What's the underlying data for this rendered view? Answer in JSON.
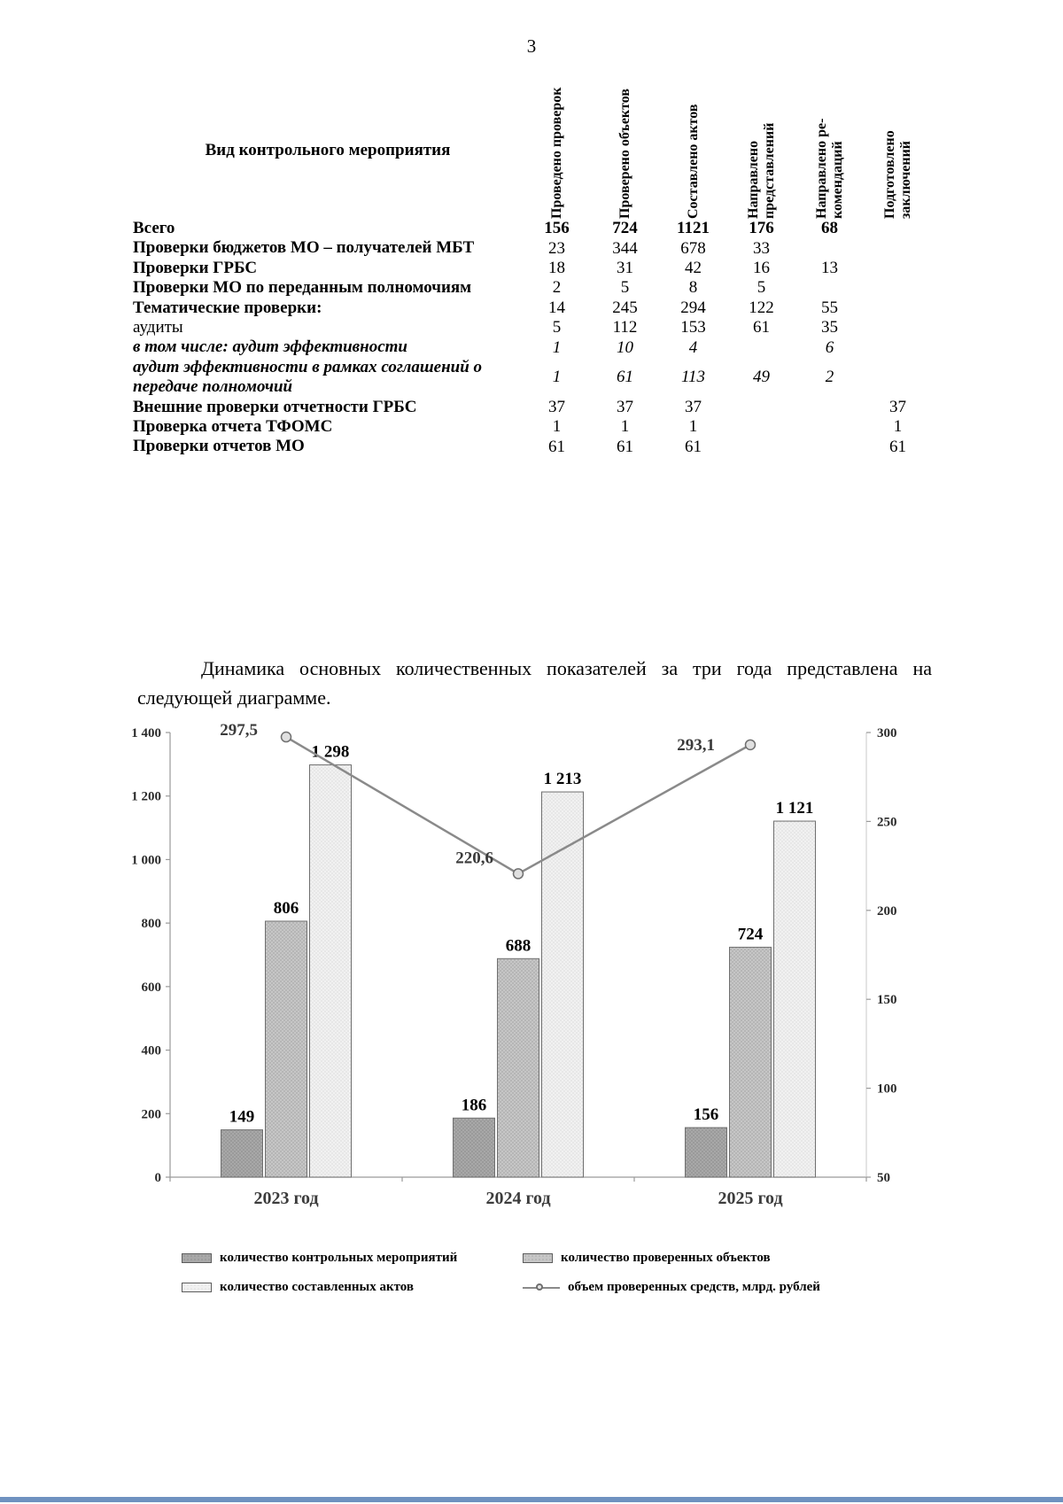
{
  "page_number": "3",
  "table": {
    "label_header": "Вид контрольного мероприятия",
    "col_headers": [
      "Проведено проверок",
      "Проверено объектов",
      "Составлено актов",
      "Направлено представлений",
      "Направлено ре-комендаций",
      "Подготовлено заключений"
    ],
    "rows": [
      {
        "label": "Всего",
        "label_style": "bold",
        "value_style": "bold",
        "values": [
          "156",
          "724",
          "1121",
          "176",
          "68",
          ""
        ]
      },
      {
        "label": "Проверки бюджетов МО – получателей МБТ",
        "label_style": "bold",
        "value_style": "regular",
        "values": [
          "23",
          "344",
          "678",
          "33",
          "",
          ""
        ]
      },
      {
        "label": "Проверки ГРБС",
        "label_style": "bold",
        "value_style": "regular",
        "values": [
          "18",
          "31",
          "42",
          "16",
          "13",
          ""
        ]
      },
      {
        "label": "Проверки МО по переданным полномочиям",
        "label_style": "bold",
        "value_style": "regular",
        "values": [
          "2",
          "5",
          "8",
          "5",
          "",
          ""
        ]
      },
      {
        "label": "Тематические проверки:",
        "label_style": "bold",
        "value_style": "regular",
        "values": [
          "14",
          "245",
          "294",
          "122",
          "55",
          ""
        ]
      },
      {
        "label": "аудиты",
        "label_style": "regular",
        "value_style": "regular",
        "values": [
          "5",
          "112",
          "153",
          "61",
          "35",
          ""
        ]
      },
      {
        "label": "в том числе: аудит эффективности",
        "label_style": "bold-italic",
        "value_style": "italic",
        "values": [
          "1",
          "10",
          "4",
          "",
          "6",
          ""
        ]
      },
      {
        "label": "аудит эффективности в рамках соглашений о передаче полномочий",
        "label_style": "bold-italic",
        "value_style": "italic",
        "values": [
          "1",
          "61",
          "113",
          "49",
          "2",
          ""
        ]
      },
      {
        "label": "Внешние проверки отчетности ГРБС",
        "label_style": "bold",
        "value_style": "regular",
        "values": [
          "37",
          "37",
          "37",
          "",
          "",
          "37"
        ]
      },
      {
        "label": "Проверка отчета ТФОМС",
        "label_style": "bold",
        "value_style": "regular",
        "values": [
          "1",
          "1",
          "1",
          "",
          "",
          "1"
        ]
      },
      {
        "label": "Проверки отчетов МО",
        "label_style": "bold",
        "value_style": "regular",
        "values": [
          "61",
          "61",
          "61",
          "",
          "",
          "61"
        ]
      }
    ]
  },
  "paragraph": "Динамика основных количественных показателей за три года представлена на следующей диаграмме.",
  "chart_data": {
    "type": "bar",
    "subtype": "grouped bars with secondary-axis line",
    "categories": [
      "2023 год",
      "2024 год",
      "2025 год"
    ],
    "series": [
      {
        "name": "количество контрольных мероприятий",
        "type": "bar",
        "axis": "left",
        "values": [
          149,
          186,
          156
        ],
        "labels": [
          "149",
          "186",
          "156"
        ]
      },
      {
        "name": "количество проверенных объектов",
        "type": "bar",
        "axis": "left",
        "values": [
          806,
          688,
          724
        ],
        "labels": [
          "806",
          "688",
          "724"
        ]
      },
      {
        "name": "количество составленных актов",
        "type": "bar",
        "axis": "left",
        "values": [
          1298,
          1213,
          1121
        ],
        "labels": [
          "1 298",
          "1 213",
          "1 121"
        ]
      },
      {
        "name": "объем проверенных средств, млрд. рублей",
        "type": "line",
        "axis": "right",
        "values": [
          297.5,
          220.6,
          293.1
        ],
        "labels": [
          "297,5",
          "220,6",
          "293,1"
        ]
      }
    ],
    "left_axis": {
      "min": 0,
      "max": 1400,
      "step": 200,
      "ticks": [
        "0",
        "200",
        "400",
        "600",
        "800",
        "1 000",
        "1 200",
        "1 400"
      ]
    },
    "right_axis": {
      "min": 50,
      "max": 300,
      "step": 50,
      "ticks": [
        "50",
        "100",
        "150",
        "200",
        "250",
        "300"
      ]
    },
    "grid": false,
    "legend_position": "bottom",
    "colors": {
      "bar1": "#a8a8a8",
      "bar2": "#c6c6c6",
      "bar3": "#f1f1f1",
      "line": "#8a8a8a"
    }
  }
}
